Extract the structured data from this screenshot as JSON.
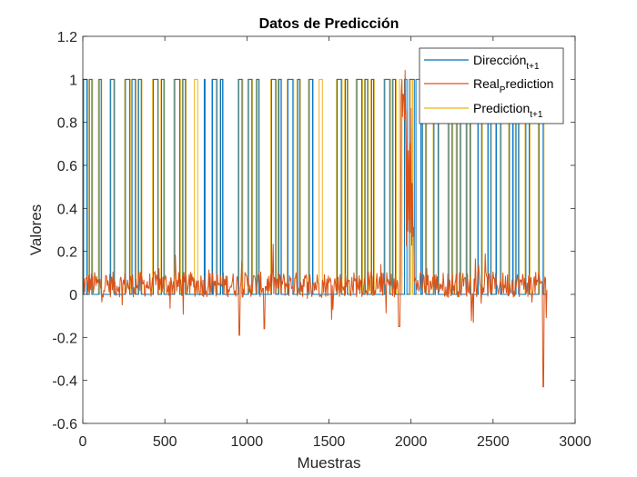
{
  "chart_data": {
    "type": "line",
    "title": "Datos de Predicción",
    "xlabel": "Muestras",
    "ylabel": "Valores",
    "xlim": [
      0,
      3000
    ],
    "ylim": [
      -0.6,
      1.2
    ],
    "xticks": [
      0,
      500,
      1000,
      1500,
      2000,
      2500,
      3000
    ],
    "yticks": [
      -0.6,
      -0.4,
      -0.2,
      0,
      0.2,
      0.4,
      0.6,
      0.8,
      1,
      1.2
    ],
    "xtick_labels": [
      "0",
      "500",
      "1000",
      "1500",
      "2000",
      "2500",
      "3000"
    ],
    "ytick_labels": [
      "-0.6",
      "-0.4",
      "-0.2",
      "0",
      "0.2",
      "0.4",
      "0.6",
      "0.8",
      "1",
      "1.2"
    ],
    "grid": false,
    "legend_position": "top-right",
    "series": [
      {
        "name": "Dirección",
        "name_sub": "t+1",
        "color": "#0072BD",
        "style": "binary-pulses",
        "pulses": [
          [
            5,
            25
          ],
          [
            40,
            55
          ],
          [
            100,
            112
          ],
          [
            170,
            190
          ],
          [
            260,
            285
          ],
          [
            300,
            320
          ],
          [
            340,
            356
          ],
          [
            430,
            458
          ],
          [
            480,
            494
          ],
          [
            560,
            590
          ],
          [
            610,
            625
          ],
          [
            740,
            745
          ],
          [
            790,
            815
          ],
          [
            840,
            852
          ],
          [
            950,
            970
          ],
          [
            1010,
            1030
          ],
          [
            1060,
            1072
          ],
          [
            1150,
            1175
          ],
          [
            1195,
            1208
          ],
          [
            1250,
            1280
          ],
          [
            1310,
            1322
          ],
          [
            1380,
            1400
          ],
          [
            1550,
            1575
          ],
          [
            1600,
            1612
          ],
          [
            1670,
            1700
          ],
          [
            1720,
            1735
          ],
          [
            1760,
            1772
          ],
          [
            1840,
            1870
          ],
          [
            1890,
            1905
          ],
          [
            1960,
            1975
          ],
          [
            1990,
            2020
          ],
          [
            2030,
            2060
          ],
          [
            2070,
            2090
          ],
          [
            2140,
            2165
          ],
          [
            2230,
            2250
          ],
          [
            2280,
            2300
          ],
          [
            2340,
            2360
          ],
          [
            2410,
            2430
          ],
          [
            2470,
            2485
          ],
          [
            2520,
            2545
          ],
          [
            2600,
            2620
          ],
          [
            2640,
            2655
          ],
          [
            2700,
            2720
          ],
          [
            2780,
            2805
          ]
        ]
      },
      {
        "name": "Real",
        "name_sub": "P",
        "name_rest": "rediction",
        "color": "#D95319",
        "style": "noisy"
      },
      {
        "name": "Prediction",
        "name_sub": "t+1",
        "color": "#EDB120",
        "style": "binary-pulses",
        "pulses": [
          [
            0,
            30
          ],
          [
            38,
            60
          ],
          [
            95,
            115
          ],
          [
            165,
            195
          ],
          [
            255,
            290
          ],
          [
            298,
            325
          ],
          [
            336,
            360
          ],
          [
            425,
            460
          ],
          [
            476,
            498
          ],
          [
            555,
            595
          ],
          [
            606,
            630
          ],
          [
            680,
            700
          ],
          [
            785,
            820
          ],
          [
            836,
            856
          ],
          [
            945,
            975
          ],
          [
            1005,
            1035
          ],
          [
            1056,
            1076
          ],
          [
            1145,
            1180
          ],
          [
            1190,
            1212
          ],
          [
            1245,
            1285
          ],
          [
            1305,
            1326
          ],
          [
            1375,
            1405
          ],
          [
            1440,
            1460
          ],
          [
            1545,
            1580
          ],
          [
            1596,
            1616
          ],
          [
            1665,
            1705
          ],
          [
            1716,
            1740
          ],
          [
            1756,
            1776
          ],
          [
            1835,
            1875
          ],
          [
            1886,
            1910
          ],
          [
            1930,
            1945
          ],
          [
            2000,
            2010
          ],
          [
            2066,
            2095
          ],
          [
            2135,
            2170
          ],
          [
            2225,
            2255
          ],
          [
            2275,
            2305
          ],
          [
            2335,
            2365
          ],
          [
            2405,
            2435
          ],
          [
            2466,
            2490
          ],
          [
            2515,
            2550
          ],
          [
            2595,
            2625
          ],
          [
            2636,
            2660
          ],
          [
            2695,
            2725
          ],
          [
            2775,
            2810
          ]
        ]
      }
    ]
  }
}
